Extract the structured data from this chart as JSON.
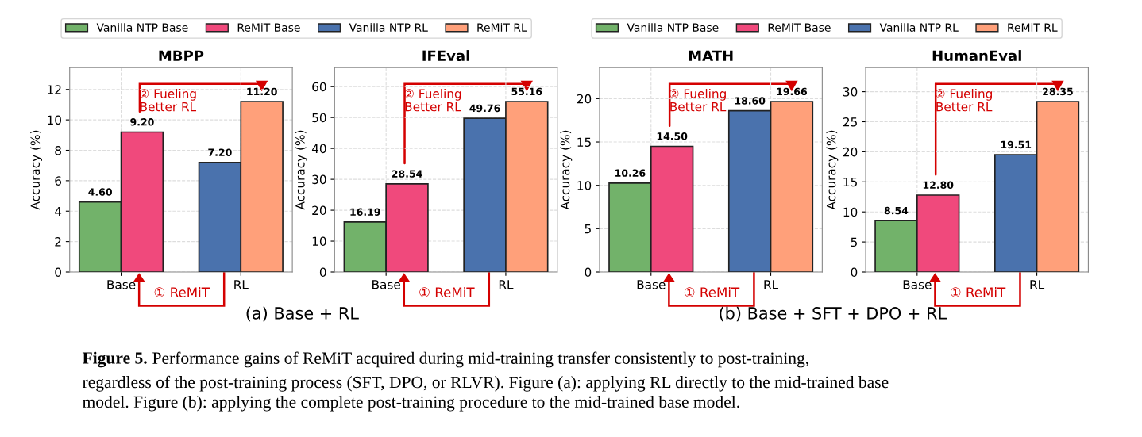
{
  "chart_data": [
    {
      "type": "bar",
      "title": "MBPP",
      "ylabel": "Accuracy (%)",
      "categories": [
        "Base",
        "RL"
      ],
      "ylim": [
        0,
        13.44
      ],
      "yticks": [
        0,
        2,
        4,
        6,
        8,
        10,
        12
      ],
      "grid": true,
      "legend": "top",
      "series": [
        {
          "name": "Vanilla NTP Base",
          "color": "#72b26a",
          "values": [
            4.6,
            null
          ],
          "value_labels": [
            "4.60",
            null
          ]
        },
        {
          "name": "ReMiT Base",
          "color": "#f0497c",
          "values": [
            9.2,
            null
          ],
          "value_labels": [
            "9.20",
            null
          ]
        },
        {
          "name": "Vanilla NTP RL",
          "color": "#4a72ad",
          "values": [
            null,
            7.2
          ],
          "value_labels": [
            null,
            "7.20"
          ]
        },
        {
          "name": "ReMiT RL",
          "color": "#ffa07a",
          "values": [
            null,
            11.2
          ],
          "value_labels": [
            null,
            "11.20"
          ]
        }
      ],
      "annotations": [
        "① ReMiT",
        "② Fueling\nBetter RL"
      ]
    },
    {
      "type": "bar",
      "title": "IFEval",
      "ylabel": "Accuracy (%)",
      "categories": [
        "Base",
        "RL"
      ],
      "ylim": [
        0,
        66.19
      ],
      "yticks": [
        0,
        10,
        20,
        30,
        40,
        50,
        60
      ],
      "grid": true,
      "series": [
        {
          "color": "#72b26a",
          "values": [
            16.19,
            null
          ],
          "value_labels": [
            "16.19",
            null
          ]
        },
        {
          "color": "#f0497c",
          "values": [
            28.54,
            null
          ],
          "value_labels": [
            "28.54",
            null
          ]
        },
        {
          "color": "#4a72ad",
          "values": [
            null,
            49.76
          ],
          "value_labels": [
            null,
            "49.76"
          ]
        },
        {
          "color": "#ffa07a",
          "values": [
            null,
            55.16
          ],
          "value_labels": [
            null,
            "55.16"
          ]
        }
      ],
      "annotations": [
        "① ReMiT",
        "② Fueling\nBetter RL"
      ]
    },
    {
      "type": "bar",
      "title": "MATH",
      "ylabel": "Accuracy (%)",
      "categories": [
        "Base",
        "RL"
      ],
      "ylim": [
        0,
        23.59
      ],
      "yticks": [
        0,
        5,
        10,
        15,
        20
      ],
      "grid": true,
      "legend": "top",
      "series": [
        {
          "name": "Vanilla NTP Base",
          "color": "#72b26a",
          "values": [
            10.26,
            null
          ],
          "value_labels": [
            "10.26",
            null
          ]
        },
        {
          "name": "ReMiT Base",
          "color": "#f0497c",
          "values": [
            14.5,
            null
          ],
          "value_labels": [
            "14.50",
            null
          ]
        },
        {
          "name": "Vanilla NTP RL",
          "color": "#4a72ad",
          "values": [
            null,
            18.6
          ],
          "value_labels": [
            null,
            "18.60"
          ]
        },
        {
          "name": "ReMiT RL",
          "color": "#ffa07a",
          "values": [
            null,
            19.66
          ],
          "value_labels": [
            null,
            "19.66"
          ]
        }
      ],
      "annotations": [
        "① ReMiT",
        "② Fueling\nBetter RL"
      ]
    },
    {
      "type": "bar",
      "title": "HumanEval",
      "ylabel": "Accuracy (%)",
      "categories": [
        "Base",
        "RL"
      ],
      "ylim": [
        0,
        34.02
      ],
      "yticks": [
        0,
        5,
        10,
        15,
        20,
        25,
        30
      ],
      "grid": true,
      "series": [
        {
          "color": "#72b26a",
          "values": [
            8.54,
            null
          ],
          "value_labels": [
            "8.54",
            null
          ]
        },
        {
          "color": "#f0497c",
          "values": [
            12.8,
            null
          ],
          "value_labels": [
            "12.80",
            null
          ]
        },
        {
          "color": "#4a72ad",
          "values": [
            null,
            19.51
          ],
          "value_labels": [
            null,
            "19.51"
          ]
        },
        {
          "color": "#ffa07a",
          "values": [
            null,
            28.35
          ],
          "value_labels": [
            null,
            "28.35"
          ]
        }
      ],
      "annotations": [
        "① ReMiT",
        "② Fueling\nBetter RL"
      ]
    },
    {
      "type": "other",
      "annotations": [
        "(a) Base + RL",
        "(b) Base + SFT + DPO + RL",
        "Figure 5.",
        "Performance gains of ReMiT acquired during mid-training transfer consistently to post-training,\nregardless of the post-training process (SFT, DPO, or RLVR). Figure (a): applying RL directly to the mid-trained base\nmodel. Figure (b): applying the complete post-training procedure to the mid-trained base model."
      ]
    }
  ]
}
